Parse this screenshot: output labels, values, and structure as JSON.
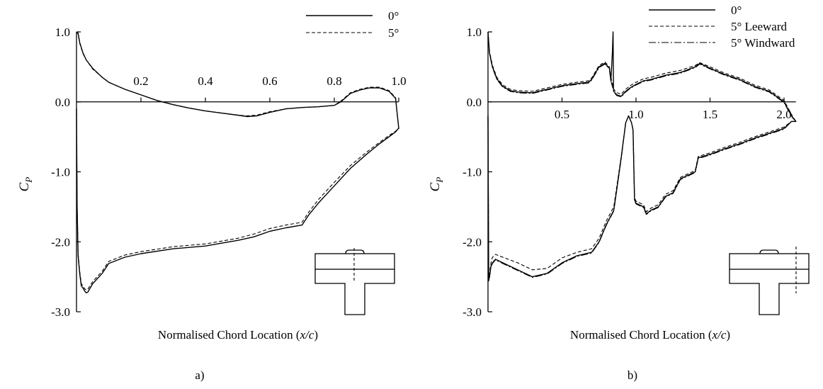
{
  "chart_data": [
    {
      "type": "line",
      "panel_label": "a)",
      "xlabel": "Normalised Chord Location (x/c)",
      "xlabel_parts": [
        "Normalised Chord Location (",
        "x/c",
        ")"
      ],
      "ylabel": "C",
      "ylabel_sub": "P",
      "xlim": [
        0,
        1.0
      ],
      "ylim": [
        -3.0,
        1.0
      ],
      "x_ticks": [
        "0.2",
        "0.4",
        "0.6",
        "0.8",
        "1.0"
      ],
      "x_tick_values": [
        0.2,
        0.4,
        0.6,
        0.8,
        1.0
      ],
      "y_ticks": [
        "1.0",
        "0.0",
        "-1.0",
        "-2.0",
        "-3.0"
      ],
      "y_tick_values": [
        1.0,
        0.0,
        -1.0,
        -2.0,
        -3.0
      ],
      "grid": false,
      "legend_position": "top-right",
      "series": [
        {
          "name": "0°",
          "style": "solid",
          "x": [
            0.0,
            0.005,
            0.01,
            0.02,
            0.03,
            0.05,
            0.08,
            0.1,
            0.15,
            0.2,
            0.25,
            0.3,
            0.35,
            0.4,
            0.45,
            0.5,
            0.53,
            0.56,
            0.6,
            0.65,
            0.7,
            0.75,
            0.8,
            0.82,
            0.85,
            0.88,
            0.91,
            0.94,
            0.97,
            0.99,
            1.0,
            0.999,
            0.99,
            0.97,
            0.94,
            0.9,
            0.85,
            0.8,
            0.75,
            0.72,
            0.7,
            0.65,
            0.6,
            0.55,
            0.5,
            0.45,
            0.4,
            0.3,
            0.2,
            0.15,
            0.1,
            0.08,
            0.05,
            0.035,
            0.03,
            0.025,
            0.02,
            0.015,
            0.01,
            0.005,
            0.002,
            0.0
          ],
          "y": [
            1.0,
            0.98,
            0.85,
            0.7,
            0.6,
            0.48,
            0.35,
            0.28,
            0.18,
            0.1,
            0.02,
            -0.04,
            -0.09,
            -0.13,
            -0.16,
            -0.19,
            -0.21,
            -0.2,
            -0.15,
            -0.1,
            -0.08,
            -0.07,
            -0.05,
            0.0,
            0.12,
            0.17,
            0.2,
            0.2,
            0.15,
            0.05,
            -0.38,
            -0.38,
            -0.43,
            -0.5,
            -0.6,
            -0.75,
            -0.95,
            -1.2,
            -1.45,
            -1.62,
            -1.76,
            -1.8,
            -1.85,
            -1.93,
            -1.98,
            -2.02,
            -2.06,
            -2.1,
            -2.17,
            -2.22,
            -2.31,
            -2.45,
            -2.6,
            -2.72,
            -2.73,
            -2.7,
            -2.66,
            -2.63,
            -2.45,
            -2.2,
            -1.5,
            -0.1
          ]
        },
        {
          "name": "5°",
          "style": "dashed",
          "x": [
            0.0,
            0.005,
            0.01,
            0.02,
            0.03,
            0.05,
            0.08,
            0.1,
            0.15,
            0.2,
            0.25,
            0.3,
            0.35,
            0.4,
            0.45,
            0.5,
            0.53,
            0.56,
            0.6,
            0.65,
            0.7,
            0.75,
            0.8,
            0.82,
            0.85,
            0.88,
            0.91,
            0.94,
            0.97,
            0.99,
            1.0,
            0.999,
            0.99,
            0.97,
            0.94,
            0.9,
            0.85,
            0.8,
            0.75,
            0.72,
            0.7,
            0.65,
            0.6,
            0.55,
            0.5,
            0.45,
            0.4,
            0.3,
            0.2,
            0.15,
            0.1,
            0.08,
            0.05,
            0.035,
            0.03,
            0.025,
            0.02,
            0.015,
            0.01,
            0.005,
            0.002,
            0.0
          ],
          "y": [
            1.0,
            0.97,
            0.84,
            0.69,
            0.6,
            0.47,
            0.35,
            0.28,
            0.18,
            0.1,
            0.02,
            -0.04,
            -0.09,
            -0.13,
            -0.16,
            -0.19,
            -0.2,
            -0.19,
            -0.14,
            -0.1,
            -0.08,
            -0.07,
            -0.05,
            0.01,
            0.13,
            0.18,
            0.21,
            0.21,
            0.16,
            0.06,
            -0.38,
            -0.38,
            -0.42,
            -0.48,
            -0.58,
            -0.72,
            -0.91,
            -1.15,
            -1.4,
            -1.58,
            -1.72,
            -1.76,
            -1.81,
            -1.89,
            -1.95,
            -1.99,
            -2.03,
            -2.07,
            -2.14,
            -2.19,
            -2.28,
            -2.42,
            -2.57,
            -2.68,
            -2.69,
            -2.67,
            -2.63,
            -2.6,
            -2.42,
            -2.17,
            -1.5,
            -0.1
          ]
        }
      ]
    },
    {
      "type": "line",
      "panel_label": "b)",
      "xlabel": "Normalised Chord Location (x/c)",
      "xlabel_parts": [
        "Normalised Chord Location (",
        "x/c",
        ")"
      ],
      "ylabel": "C",
      "ylabel_sub": "P",
      "xlim": [
        0,
        2.15
      ],
      "ylim": [
        -3.0,
        1.0
      ],
      "x_ticks": [
        "0.5",
        "1.0",
        "1.5",
        "2.0"
      ],
      "x_tick_values": [
        0.5,
        1.0,
        1.5,
        2.0
      ],
      "y_ticks": [
        "1.0",
        "0.0",
        "-1.0",
        "-2.0",
        "-3.0"
      ],
      "y_tick_values": [
        1.0,
        0.0,
        -1.0,
        -2.0,
        -3.0
      ],
      "grid": false,
      "legend_position": "top-right",
      "series": [
        {
          "name": "0°",
          "style": "solid",
          "x": [
            0.0,
            0.01,
            0.03,
            0.06,
            0.1,
            0.15,
            0.2,
            0.3,
            0.4,
            0.5,
            0.6,
            0.68,
            0.7,
            0.75,
            0.79,
            0.82,
            0.83,
            0.84,
            0.845,
            0.848,
            0.85,
            0.87,
            0.9,
            0.93,
            0.96,
            1.0,
            1.05,
            1.1,
            1.2,
            1.3,
            1.4,
            1.43,
            1.5,
            1.6,
            1.7,
            1.8,
            1.9,
            2.0,
            2.05,
            2.08,
            2.05,
            2.0,
            1.9,
            1.8,
            1.7,
            1.6,
            1.5,
            1.42,
            1.4,
            1.3,
            1.25,
            1.2,
            1.15,
            1.1,
            1.07,
            1.05,
            1.0,
            0.99,
            0.98,
            0.97,
            0.95,
            0.93,
            0.9,
            0.85,
            0.8,
            0.75,
            0.7,
            0.6,
            0.5,
            0.4,
            0.3,
            0.2,
            0.1,
            0.05,
            0.03,
            0.02,
            0.01,
            0.005,
            0.0
          ],
          "y": [
            1.0,
            0.7,
            0.5,
            0.33,
            0.22,
            0.16,
            0.14,
            0.13,
            0.18,
            0.23,
            0.26,
            0.28,
            0.32,
            0.5,
            0.55,
            0.48,
            0.3,
            0.7,
            1.0,
            0.2,
            0.15,
            0.1,
            0.08,
            0.15,
            0.2,
            0.25,
            0.3,
            0.32,
            0.38,
            0.42,
            0.5,
            0.55,
            0.48,
            0.39,
            0.32,
            0.22,
            0.15,
            0.0,
            -0.2,
            -0.28,
            -0.28,
            -0.38,
            -0.45,
            -0.52,
            -0.6,
            -0.67,
            -0.75,
            -0.8,
            -1.0,
            -1.1,
            -1.3,
            -1.35,
            -1.5,
            -1.55,
            -1.6,
            -1.5,
            -1.45,
            -1.4,
            -0.4,
            -0.3,
            -0.2,
            -0.3,
            -0.8,
            -1.55,
            -1.75,
            -2.0,
            -2.15,
            -2.2,
            -2.3,
            -2.45,
            -2.5,
            -2.4,
            -2.3,
            -2.25,
            -2.3,
            -2.35,
            -2.5,
            -2.55,
            -0.2
          ]
        },
        {
          "name": "5° Leeward",
          "style": "dashed",
          "x": [
            0.0,
            0.01,
            0.03,
            0.06,
            0.1,
            0.15,
            0.2,
            0.3,
            0.4,
            0.5,
            0.6,
            0.68,
            0.7,
            0.75,
            0.79,
            0.82,
            0.83,
            0.85,
            0.87,
            0.9,
            0.93,
            0.96,
            1.0,
            1.05,
            1.1,
            1.2,
            1.3,
            1.4,
            1.43,
            1.5,
            1.6,
            1.7,
            1.8,
            1.9,
            2.0,
            2.05,
            2.08,
            2.05,
            2.0,
            1.9,
            1.8,
            1.7,
            1.6,
            1.5,
            1.42,
            1.4,
            1.3,
            1.25,
            1.2,
            1.15,
            1.1,
            1.07,
            1.05,
            1.0,
            0.99,
            0.98,
            0.97,
            0.95,
            0.93,
            0.9,
            0.85,
            0.8,
            0.75,
            0.7,
            0.6,
            0.5,
            0.4,
            0.3,
            0.2,
            0.1,
            0.05,
            0.03,
            0.02,
            0.01,
            0.005,
            0.0
          ],
          "y": [
            1.0,
            0.72,
            0.52,
            0.35,
            0.24,
            0.18,
            0.16,
            0.15,
            0.2,
            0.25,
            0.28,
            0.3,
            0.34,
            0.52,
            0.57,
            0.5,
            0.35,
            0.18,
            0.13,
            0.11,
            0.18,
            0.23,
            0.28,
            0.33,
            0.35,
            0.41,
            0.45,
            0.52,
            0.56,
            0.5,
            0.41,
            0.34,
            0.24,
            0.17,
            0.02,
            -0.18,
            -0.28,
            -0.28,
            -0.36,
            -0.43,
            -0.5,
            -0.58,
            -0.65,
            -0.73,
            -0.78,
            -0.98,
            -1.08,
            -1.27,
            -1.32,
            -1.47,
            -1.52,
            -1.57,
            -1.47,
            -1.42,
            -1.37,
            -0.4,
            -0.3,
            -0.2,
            -0.3,
            -0.78,
            -1.5,
            -1.7,
            -1.95,
            -2.1,
            -2.15,
            -2.23,
            -2.38,
            -2.4,
            -2.3,
            -2.22,
            -2.18,
            -2.22,
            -2.3,
            -2.45,
            -2.5,
            -0.2
          ]
        },
        {
          "name": "5° Windward",
          "style": "dashdot",
          "x": [
            0.0,
            0.01,
            0.03,
            0.06,
            0.1,
            0.15,
            0.2,
            0.3,
            0.4,
            0.5,
            0.6,
            0.68,
            0.7,
            0.75,
            0.79,
            0.82,
            0.83,
            0.85,
            0.87,
            0.9,
            0.93,
            0.96,
            1.0,
            1.05,
            1.1,
            1.2,
            1.3,
            1.4,
            1.43,
            1.5,
            1.6,
            1.7,
            1.8,
            1.9,
            2.0,
            2.05,
            2.08,
            2.05,
            2.0,
            1.9,
            1.8,
            1.7,
            1.6,
            1.5,
            1.42,
            1.4,
            1.3,
            1.25,
            1.2,
            1.15,
            1.1,
            1.07,
            1.05,
            1.0,
            0.99,
            0.98,
            0.97,
            0.95,
            0.93,
            0.9,
            0.85,
            0.8,
            0.75,
            0.7,
            0.6,
            0.5,
            0.4,
            0.3,
            0.2,
            0.1,
            0.05,
            0.03,
            0.02,
            0.01,
            0.005,
            0.0
          ],
          "y": [
            1.0,
            0.69,
            0.49,
            0.32,
            0.21,
            0.15,
            0.13,
            0.12,
            0.17,
            0.22,
            0.25,
            0.27,
            0.31,
            0.49,
            0.54,
            0.47,
            0.3,
            0.14,
            0.09,
            0.07,
            0.14,
            0.19,
            0.24,
            0.29,
            0.31,
            0.37,
            0.41,
            0.49,
            0.54,
            0.47,
            0.38,
            0.31,
            0.21,
            0.14,
            -0.01,
            -0.21,
            -0.28,
            -0.28,
            -0.39,
            -0.46,
            -0.53,
            -0.61,
            -0.68,
            -0.76,
            -0.81,
            -1.01,
            -1.11,
            -1.31,
            -1.36,
            -1.51,
            -1.56,
            -1.61,
            -1.51,
            -1.46,
            -1.41,
            -0.4,
            -0.3,
            -0.2,
            -0.3,
            -0.81,
            -1.56,
            -1.76,
            -2.01,
            -2.16,
            -2.21,
            -2.31,
            -2.46,
            -2.51,
            -2.41,
            -2.31,
            -2.26,
            -2.31,
            -2.36,
            -2.51,
            -2.56,
            -0.2
          ]
        }
      ]
    }
  ]
}
